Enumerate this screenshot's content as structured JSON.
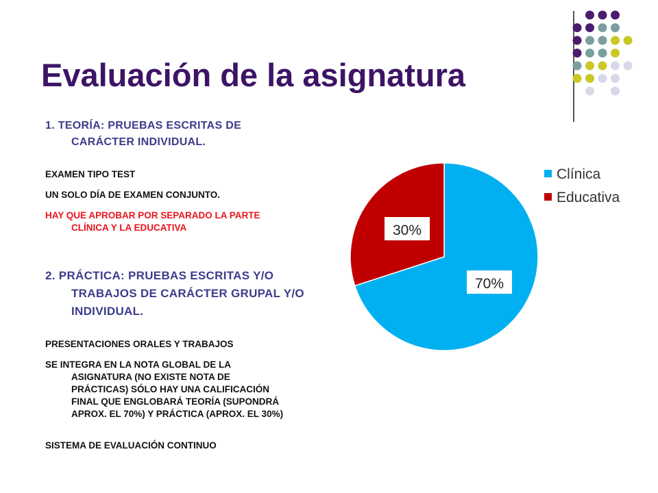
{
  "slide": {
    "title": "Evaluación de la asignatura"
  },
  "section1": {
    "heading_line1": "1.   TEORÍA: PRUEBAS ESCRITAS DE",
    "heading_line2": "CARÁCTER INDIVIDUAL.",
    "note1": "EXAMEN TIPO TEST",
    "note2": "UN SOLO DÍA DE EXAMEN CONJUNTO.",
    "note3_line1": "HAY QUE APROBAR POR SEPARADO LA PARTE",
    "note3_line2": "CLÍNICA Y LA EDUCATIVA"
  },
  "section2": {
    "heading_line1": "2. PRÁCTICA: PRUEBAS ESCRITAS Y/O",
    "heading_line2": "TRABAJOS DE CARÁCTER GRUPAL Y/O",
    "heading_line3": "INDIVIDUAL.",
    "note1": "PRESENTACIONES ORALES Y TRABAJOS",
    "note2_line1": "SE INTEGRA EN LA NOTA GLOBAL DE LA",
    "note2_line2": "ASIGNATURA (NO EXISTE NOTA DE",
    "note2_line3": "PRÁCTICAS) SÓLO HAY UNA CALIFICACIÓN",
    "note2_line4": "FINAL QUE ENGLOBARÁ TEORÍA (SUPONDRÁ",
    "note2_line5": "APROX. EL 70%) Y PRÁCTICA  (APROX. EL 30%)",
    "note3": "SISTEMA DE EVALUACIÓN CONTINUO"
  },
  "colors": {
    "title": "#3d1466",
    "clinica": "#00b0f0",
    "educativa": "#c00000",
    "dot_purple": "#4b1c6e",
    "dot_teal": "#7a9e9f",
    "dot_olive": "#c9c825",
    "dot_lavender": "#d8d8ea"
  },
  "chart_data": {
    "type": "pie",
    "slices": [
      {
        "label": "Clínica",
        "value": 70,
        "data_label": "70%",
        "color": "#00b0f0"
      },
      {
        "label": "Educativa",
        "value": 30,
        "data_label": "30%",
        "color": "#c00000"
      }
    ],
    "legend": [
      "Clínica",
      "Educativa"
    ],
    "legend_position": "right"
  }
}
